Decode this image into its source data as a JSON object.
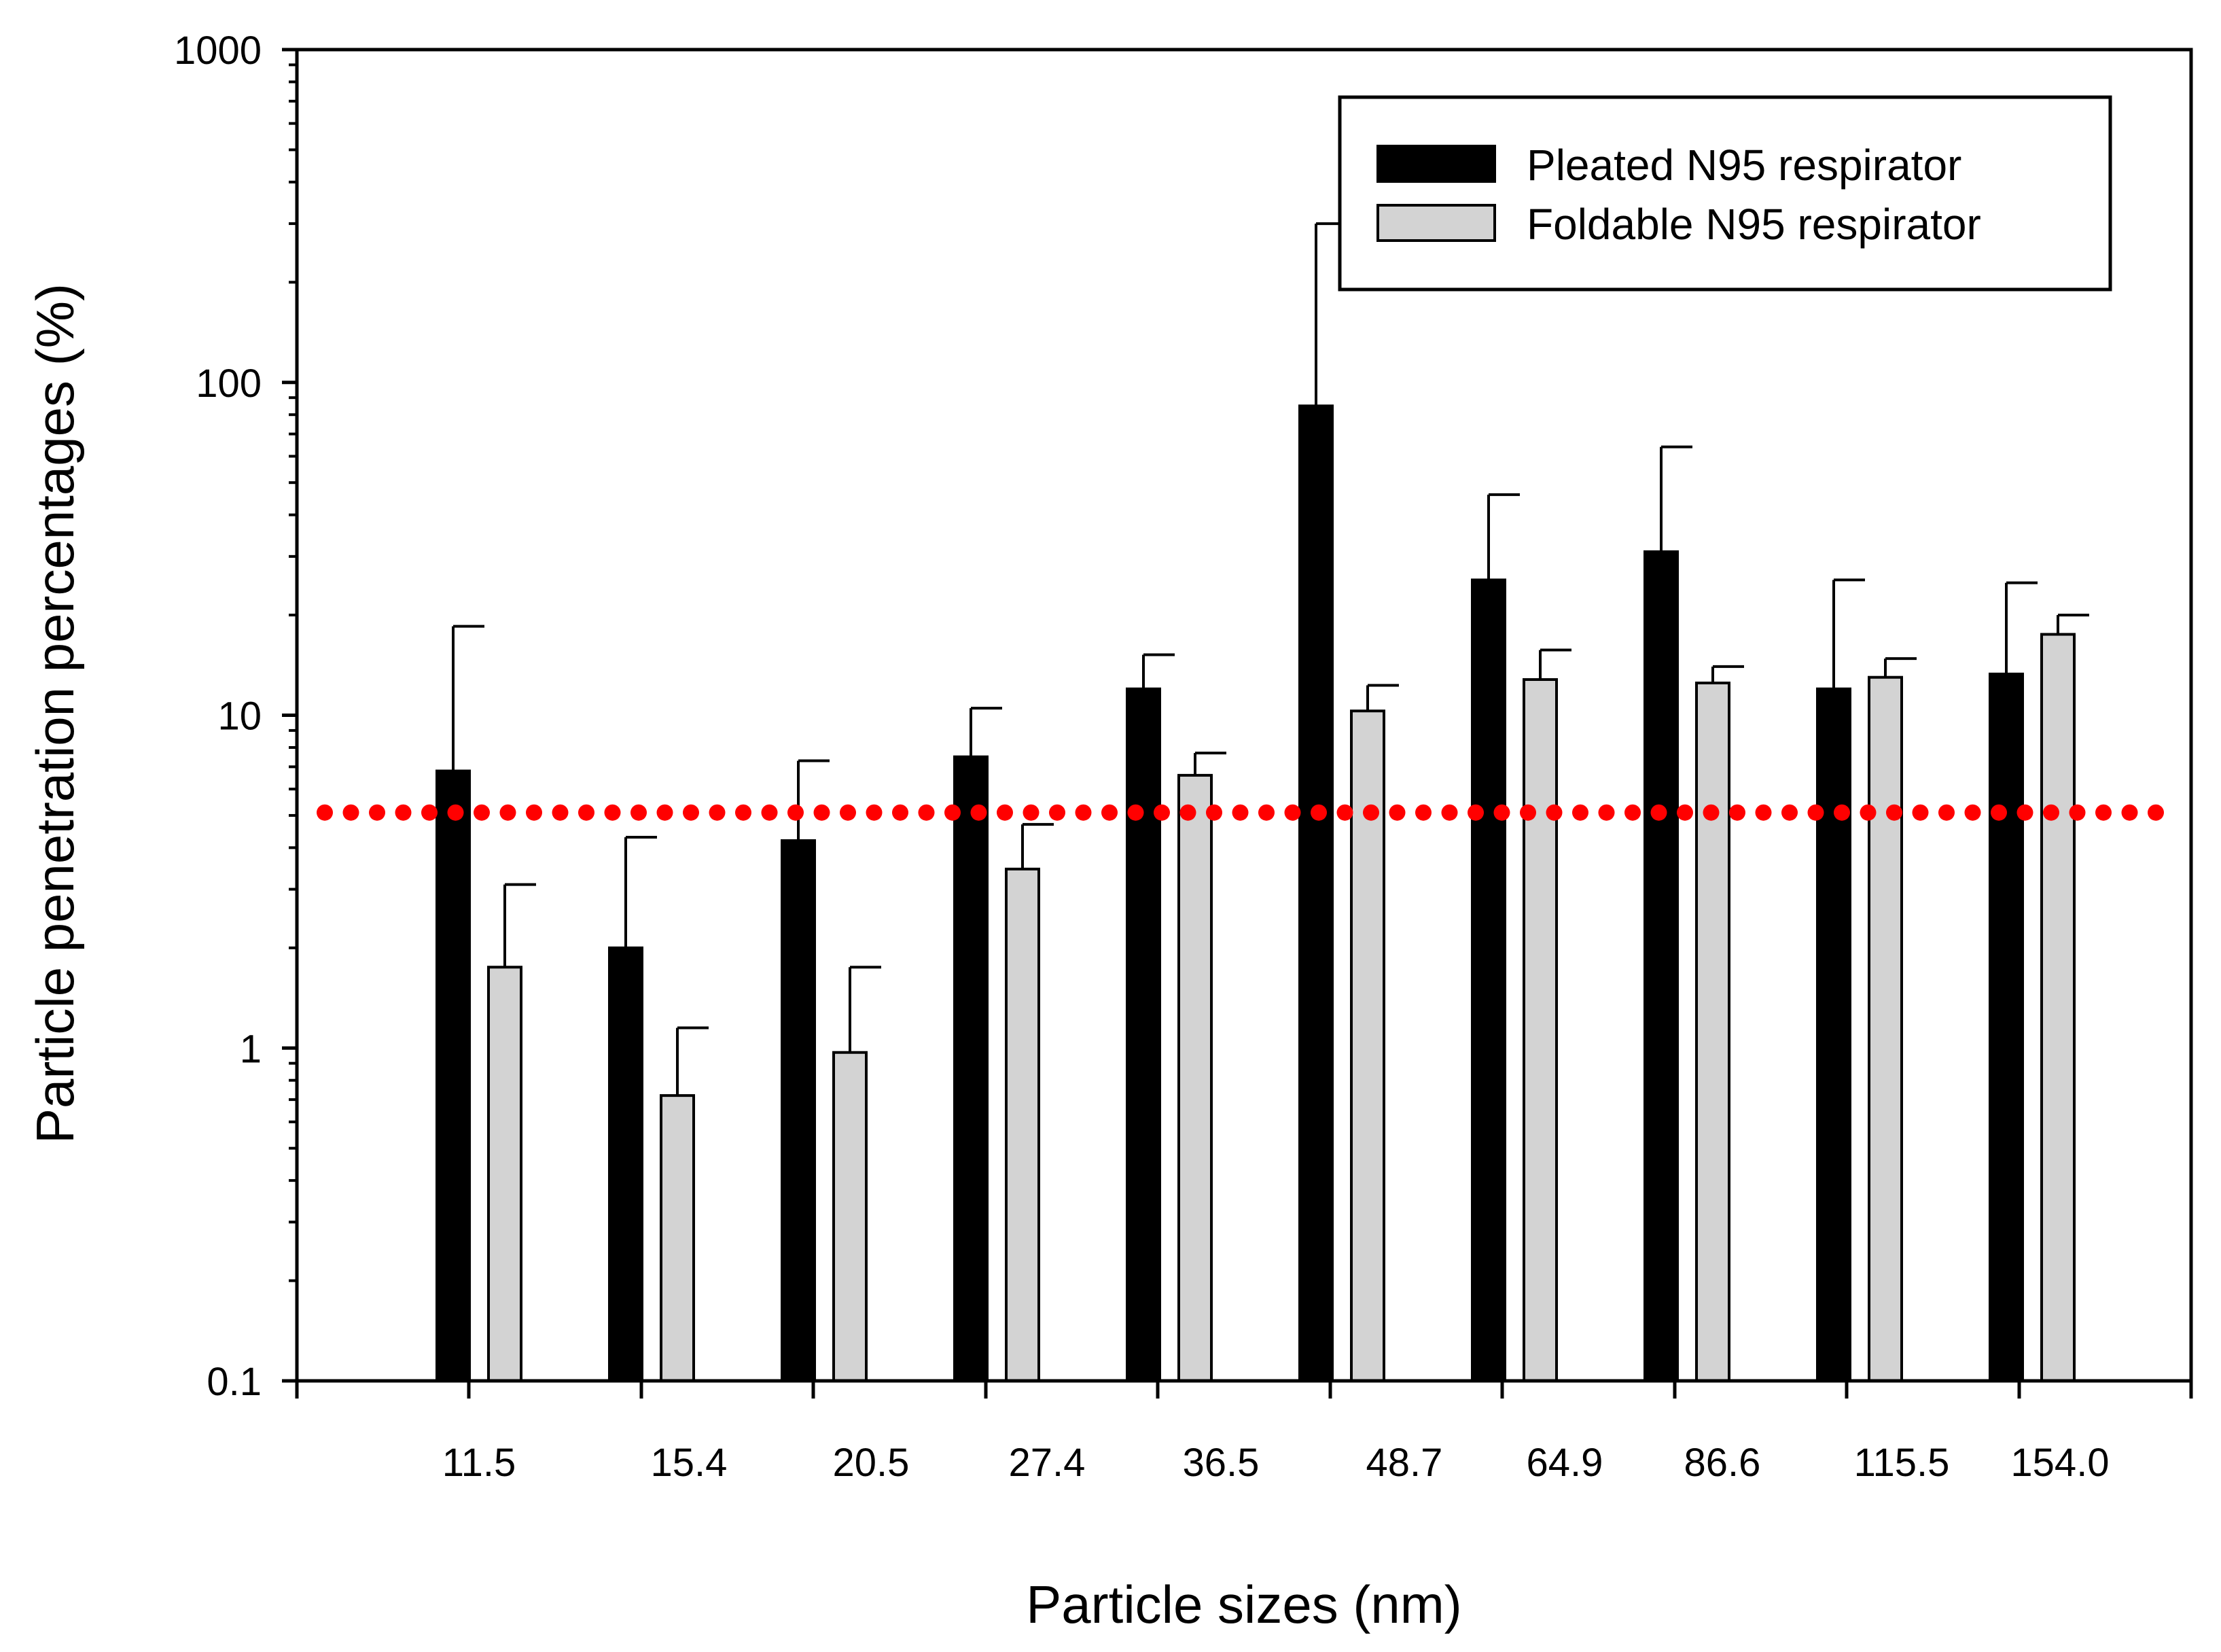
{
  "chart_data": {
    "type": "bar",
    "title": "",
    "xlabel": "Particle sizes (nm)",
    "ylabel": "Particle penetration percentages (%)",
    "yscale": "log",
    "ylim": [
      0.1,
      1000
    ],
    "yticks": [
      {
        "value": 0.1,
        "label": "0.1"
      },
      {
        "value": 1,
        "label": "1"
      },
      {
        "value": 10,
        "label": "10"
      },
      {
        "value": 100,
        "label": "100"
      },
      {
        "value": 1000,
        "label": "1000"
      }
    ],
    "categories": [
      "11.5",
      "15.4",
      "20.5",
      "27.4",
      "36.5",
      "48.7",
      "64.9",
      "86.6",
      "115.5",
      "154.0"
    ],
    "series": [
      {
        "name": "Pleated N95 respirator",
        "color": "#000000",
        "values": [
          6.8,
          2.0,
          4.2,
          7.5,
          12.0,
          85,
          25.5,
          31,
          12.0,
          13.3
        ],
        "error_upper": [
          18.5,
          4.3,
          7.3,
          10.5,
          15.2,
          300,
          46,
          64,
          25.5,
          25
        ]
      },
      {
        "name": "Foldable N95 respirator",
        "color": "#d3d3d3",
        "values": [
          1.75,
          0.72,
          0.97,
          3.45,
          6.6,
          10.3,
          12.8,
          12.5,
          13.0,
          17.5
        ],
        "error_upper": [
          3.1,
          1.15,
          1.75,
          4.7,
          7.7,
          12.3,
          15.7,
          14.0,
          14.8,
          20.0
        ]
      }
    ],
    "reference_line": {
      "value": 5.1,
      "color": "#ff0000",
      "style": "dotted"
    },
    "legend_position": "top-right",
    "grid": false
  }
}
